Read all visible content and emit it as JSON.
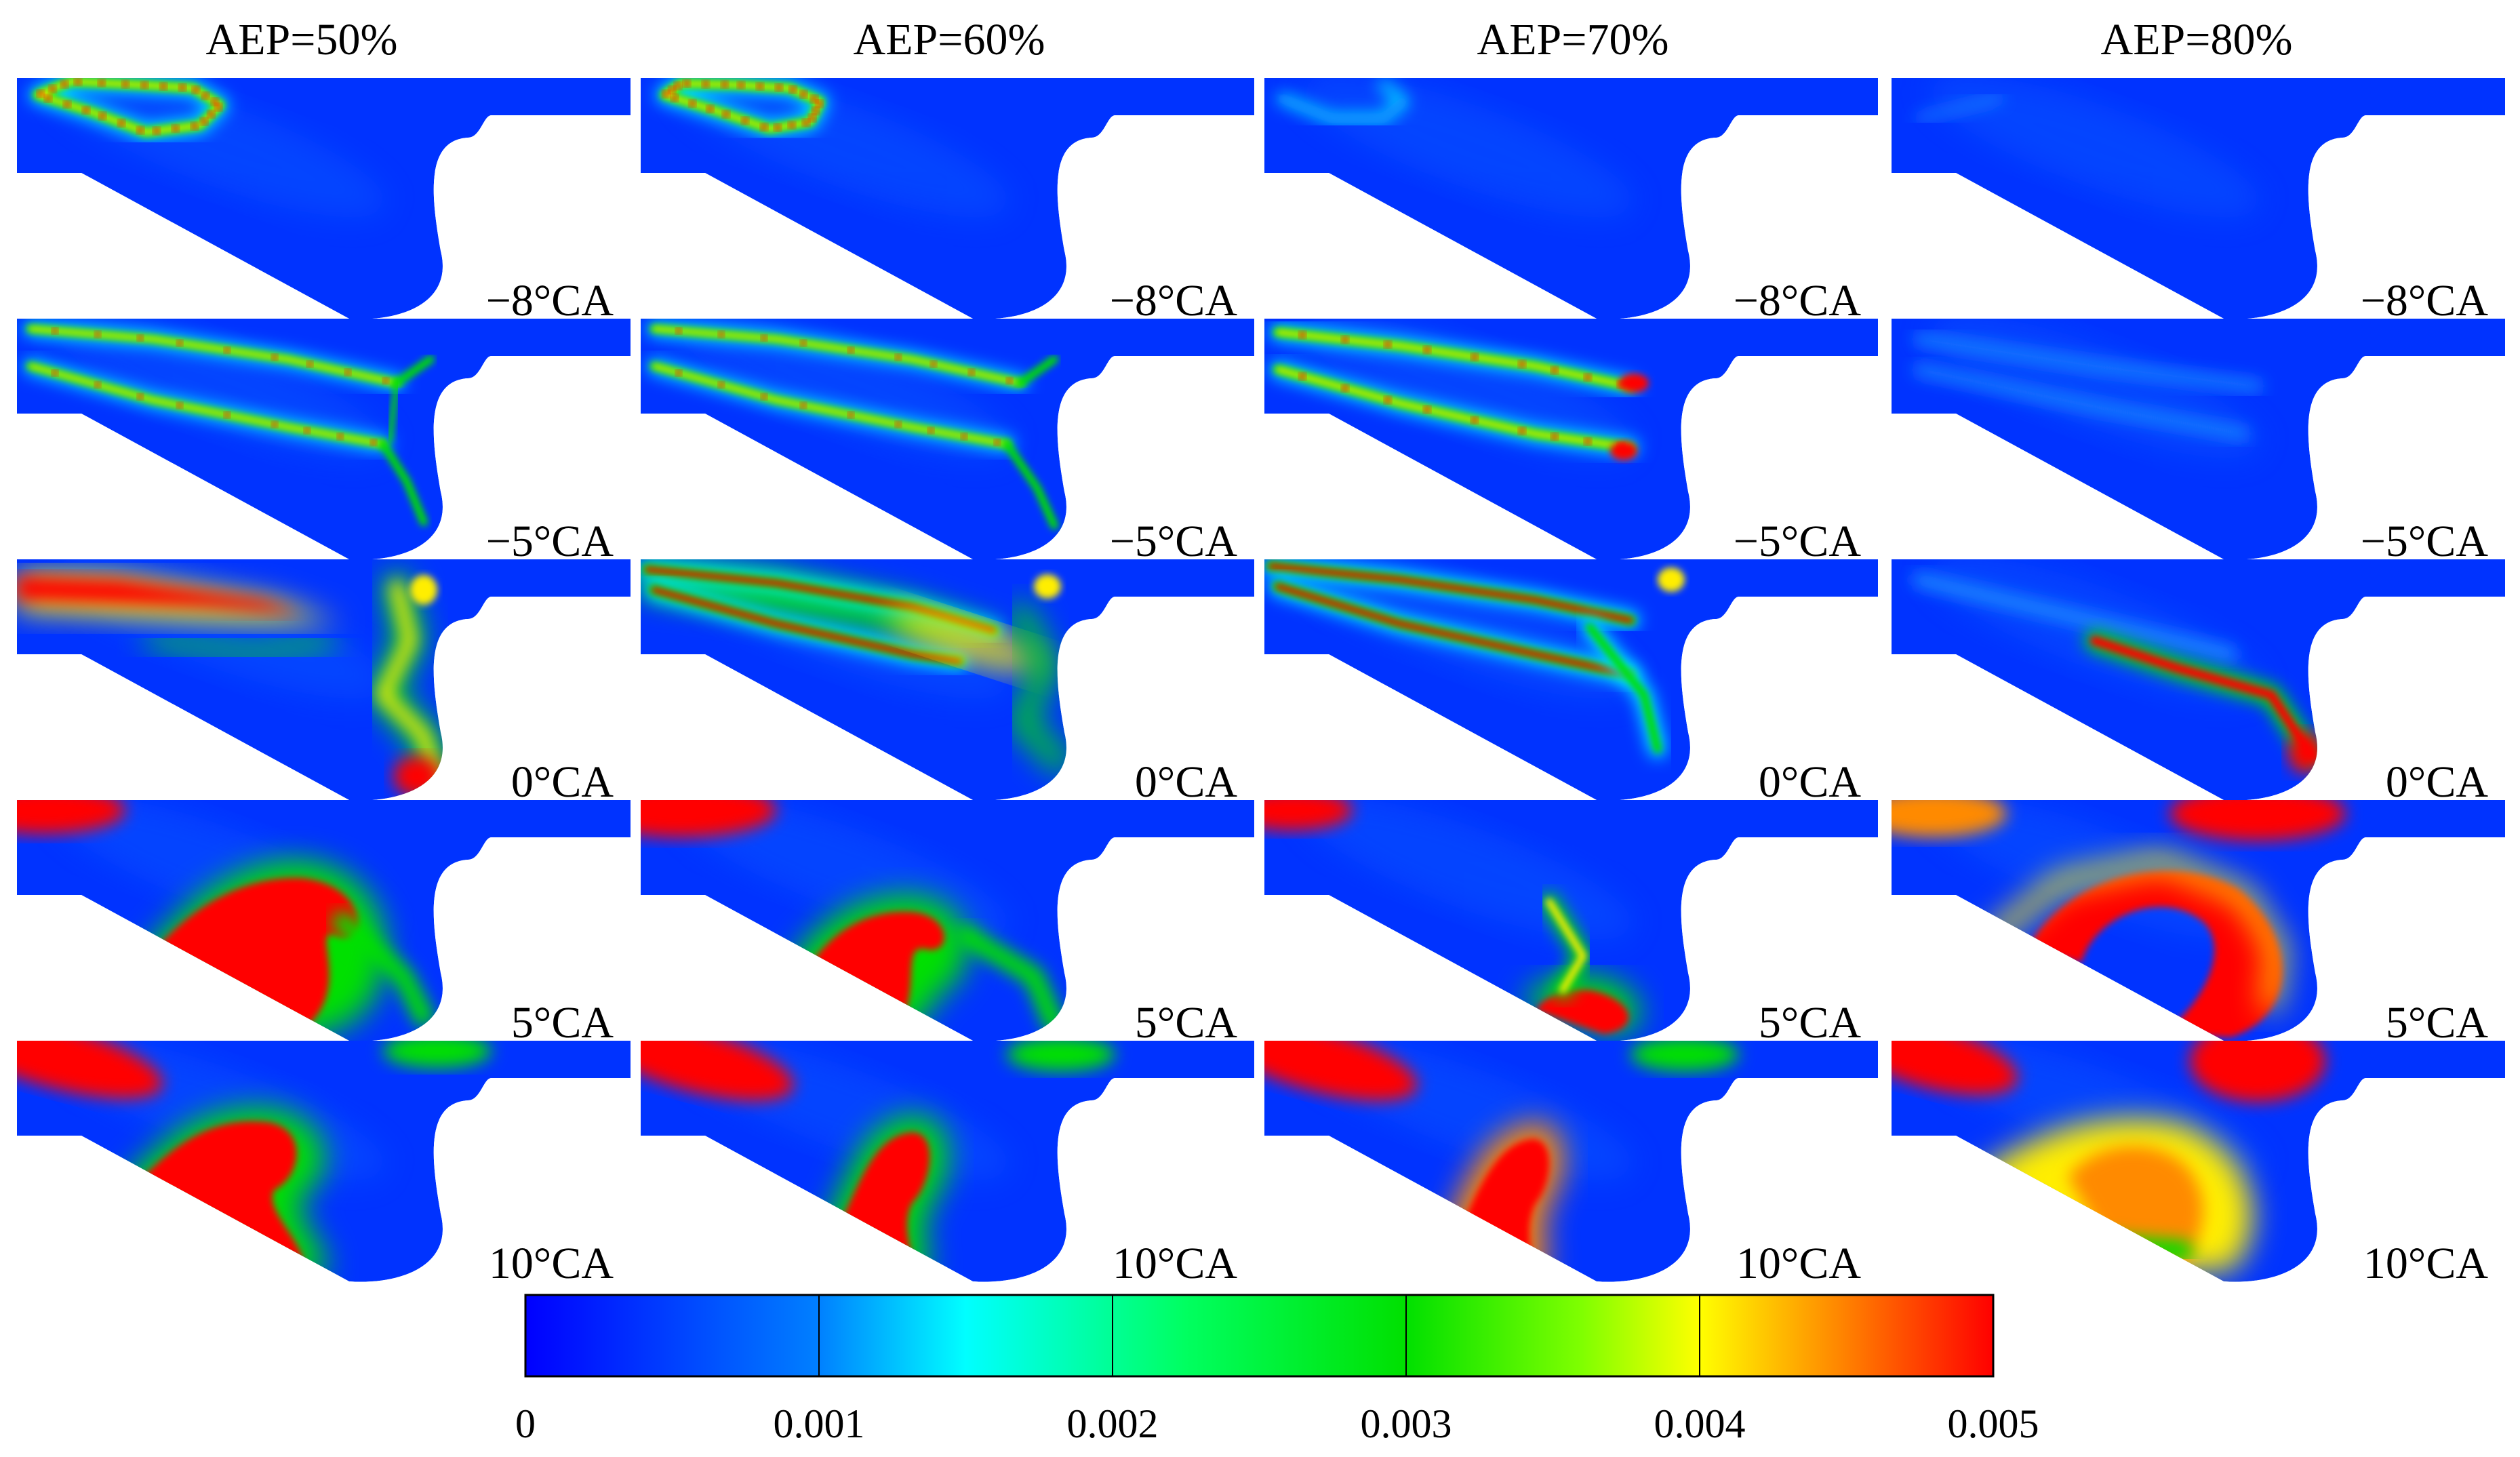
{
  "columns": [
    "AEP=50%",
    "AEP=60%",
    "AEP=70%",
    "AEP=80%"
  ],
  "rows": [
    "−8°CA",
    "−5°CA",
    "0°CA",
    "5°CA",
    "10°CA"
  ],
  "colorbar": {
    "ticks": [
      "0",
      "0.001",
      "0.002",
      "0.003",
      "0.004",
      "0.005"
    ],
    "range": [
      0,
      0.005
    ],
    "colormap": [
      "#0000ff",
      "#00ffff",
      "#00ff00",
      "#ffff00",
      "#ff0000"
    ]
  }
}
